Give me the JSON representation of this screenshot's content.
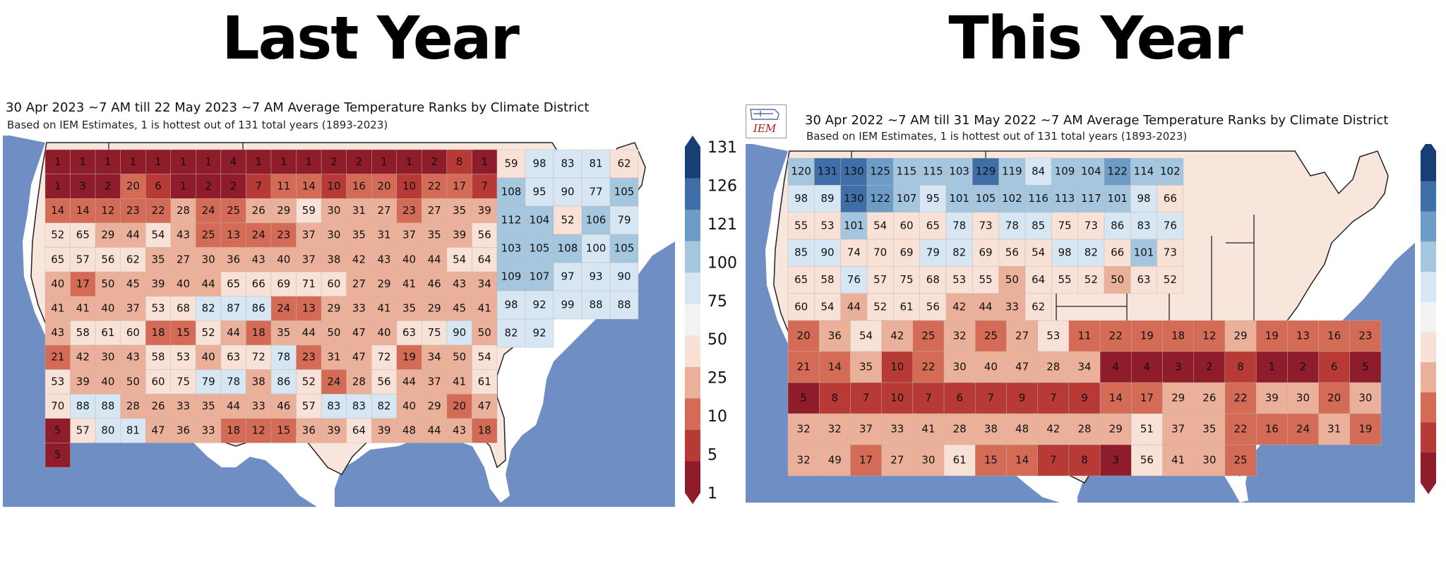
{
  "headings": {
    "left": "Last Year",
    "right": "This Year"
  },
  "palette": {
    "ocean": "#6f8fc4",
    "land_outside": "#ffffff",
    "bins": [
      "#8e1c2a",
      "#b73a36",
      "#d36b56",
      "#eab09a",
      "#f8e1d6",
      "#f3f3f3",
      "#d6e6f2",
      "#a5c6df",
      "#6d9dc7",
      "#3f6ea8",
      "#173f75"
    ]
  },
  "panels": [
    {
      "id": "left",
      "title": "30 Apr 2023 ~7 AM till 22 May 2023 ~7 AM Average Temperature Ranks by Climate District",
      "subtitle": "Based on IEM Estimates, 1 is hottest out of 131 total years (1893-2023)",
      "colorbar_ticks": [
        "131",
        "126",
        "121",
        "100",
        "75",
        "50",
        "25",
        "10",
        "5",
        "1"
      ],
      "district_ranks": [
        [
          "1",
          "1",
          "1",
          "1",
          "1",
          "1",
          "1",
          "4",
          "1",
          "1",
          "1",
          "2",
          "2",
          "1",
          "1",
          "2",
          "8",
          "1",
          "1",
          "3",
          "2",
          "20",
          "6",
          "1",
          "2",
          "2",
          "7",
          "11",
          "14",
          "10",
          "16",
          "20",
          "10",
          "22",
          "17",
          "7",
          "14",
          "14",
          "12",
          "23",
          "22",
          "28",
          "24",
          "25",
          "26",
          "29",
          "59",
          "30",
          "31",
          "27",
          "23",
          "27",
          "35",
          "39",
          "52",
          "65",
          "29",
          "44",
          "54",
          "43",
          "25",
          "13",
          "24",
          "23",
          "37",
          "30",
          "35",
          "31",
          "37",
          "35",
          "39",
          "56",
          "65",
          "57",
          "56",
          "62",
          "35",
          "27",
          "30",
          "36",
          "43",
          "40",
          "37",
          "38",
          "42",
          "43",
          "40",
          "44",
          "54",
          "64",
          "40",
          "17",
          "50",
          "45",
          "39",
          "40",
          "44",
          "65",
          "66",
          "69",
          "71",
          "60",
          "27",
          "29",
          "41",
          "46",
          "43",
          "34",
          "41",
          "41",
          "40",
          "37",
          "53",
          "68",
          "82",
          "87",
          "86",
          "24",
          "13",
          "29",
          "33",
          "41",
          "35",
          "29",
          "45",
          "41",
          "43",
          "58",
          "61",
          "60",
          "18",
          "15",
          "52",
          "44",
          "18",
          "35",
          "44",
          "50",
          "47",
          "40",
          "63",
          "75",
          "90",
          "50",
          "21",
          "42",
          "30",
          "43",
          "58",
          "53",
          "40",
          "63",
          "72",
          "78",
          "23",
          "31",
          "47",
          "72",
          "19",
          "34",
          "50",
          "54",
          "53",
          "39",
          "40",
          "50",
          "60",
          "75",
          "79",
          "78",
          "38",
          "86",
          "52",
          "24",
          "28",
          "56",
          "44",
          "37",
          "41",
          "61",
          "70",
          "88",
          "88",
          "28",
          "26",
          "33",
          "35",
          "44",
          "33",
          "46",
          "57",
          "83",
          "83",
          "82",
          "40",
          "29",
          "20",
          "47",
          "5",
          "57",
          "80",
          "81",
          "47",
          "36",
          "33",
          "18",
          "12",
          "15",
          "36",
          "39",
          "64",
          "39",
          "48",
          "44",
          "43",
          "18",
          "5"
        ],
        [
          "59",
          "98",
          "83",
          "81",
          "62",
          "108",
          "95",
          "90",
          "77",
          "105",
          "112",
          "104",
          "52",
          "106",
          "79",
          "103",
          "105",
          "108",
          "100",
          "105",
          "109",
          "107",
          "97",
          "93",
          "90",
          "98",
          "92",
          "99",
          "88",
          "88",
          "82",
          "92"
        ]
      ]
    },
    {
      "id": "right",
      "title": "30 Apr 2022 ~7 AM till 31 May 2022 ~7 AM Average Temperature Ranks by Climate District",
      "subtitle": "Based on IEM Estimates, 1 is hottest out of 131 total years (1893-2023)",
      "logo_text": "IEM",
      "colorbar_ticks": [],
      "district_ranks": [
        [
          "120",
          "131",
          "130",
          "125",
          "115",
          "115",
          "103",
          "129",
          "119",
          "84",
          "109",
          "104",
          "122",
          "114",
          "102",
          "98",
          "89",
          "130",
          "122",
          "107",
          "95",
          "101",
          "105",
          "102",
          "116",
          "113",
          "117",
          "101",
          "98",
          "66",
          "55",
          "53",
          "101",
          "54",
          "60",
          "65",
          "78",
          "73",
          "78",
          "85",
          "75",
          "73",
          "86",
          "83",
          "76",
          "85",
          "90",
          "74",
          "70",
          "69",
          "79",
          "82",
          "69",
          "56",
          "54",
          "98",
          "82",
          "66",
          "101",
          "73",
          "65",
          "58",
          "76",
          "57",
          "75",
          "68",
          "53",
          "55",
          "50",
          "64",
          "55",
          "52",
          "50",
          "63",
          "52",
          "60",
          "54",
          "44",
          "52",
          "61",
          "56",
          "42",
          "44",
          "33",
          "62"
        ],
        [
          "20",
          "36",
          "54",
          "42",
          "25",
          "32",
          "25",
          "27",
          "53",
          "11",
          "22",
          "19",
          "18",
          "12",
          "29",
          "19",
          "13",
          "16",
          "23",
          "21",
          "14",
          "35",
          "10",
          "22",
          "30",
          "40",
          "47",
          "28",
          "34",
          "4",
          "4",
          "3",
          "2",
          "8",
          "1",
          "2",
          "6",
          "5",
          "5",
          "8",
          "7",
          "10",
          "7",
          "6",
          "7",
          "9",
          "7",
          "9",
          "14",
          "17",
          "29",
          "26",
          "22",
          "39",
          "30",
          "20",
          "30",
          "32",
          "32",
          "37",
          "33",
          "41",
          "28",
          "38",
          "48",
          "42",
          "28",
          "29",
          "51",
          "37",
          "35",
          "22",
          "16",
          "24",
          "31",
          "19",
          "32",
          "49",
          "17",
          "27",
          "30",
          "61",
          "15",
          "14",
          "7",
          "8",
          "3",
          "56",
          "41",
          "30",
          "25"
        ]
      ]
    }
  ]
}
